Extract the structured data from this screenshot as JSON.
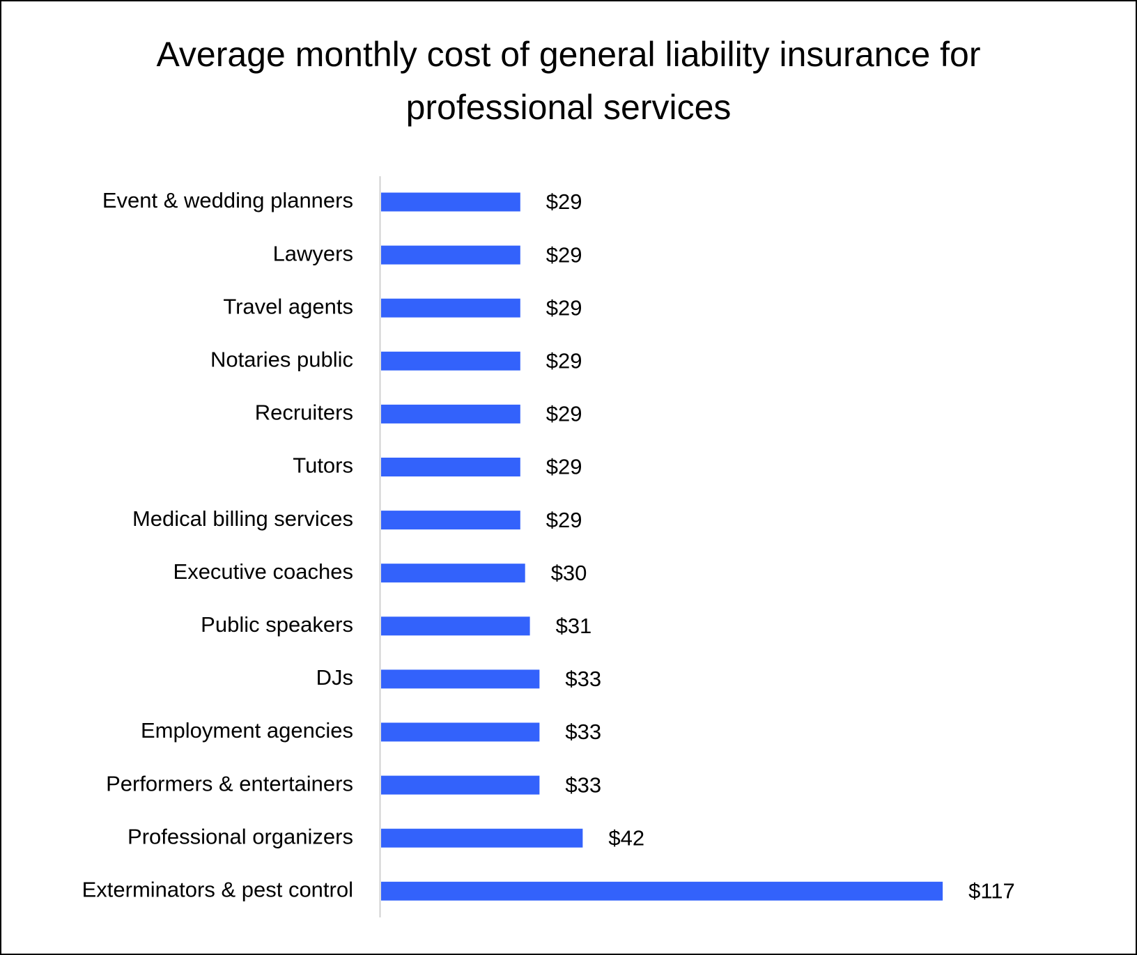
{
  "chart_data": {
    "type": "hbar",
    "title": "Average monthly cost of general liability insurance for professional services",
    "categories": [
      "Event & wedding planners",
      "Lawyers",
      "Travel agents",
      "Notaries public",
      "Recruiters",
      "Tutors",
      "Medical billing services",
      "Executive coaches",
      "Public speakers",
      "DJs",
      "Employment agencies",
      "Performers & entertainers",
      "Professional organizers",
      "Exterminators & pest control"
    ],
    "values": [
      29,
      29,
      29,
      29,
      29,
      29,
      29,
      30,
      31,
      33,
      33,
      33,
      42,
      117
    ],
    "value_labels": [
      "$29",
      "$29",
      "$29",
      "$29",
      "$29",
      "$29",
      "$29",
      "$30",
      "$31",
      "$33",
      "$33",
      "$33",
      "$42",
      "$117"
    ],
    "color": "#3362fb"
  }
}
